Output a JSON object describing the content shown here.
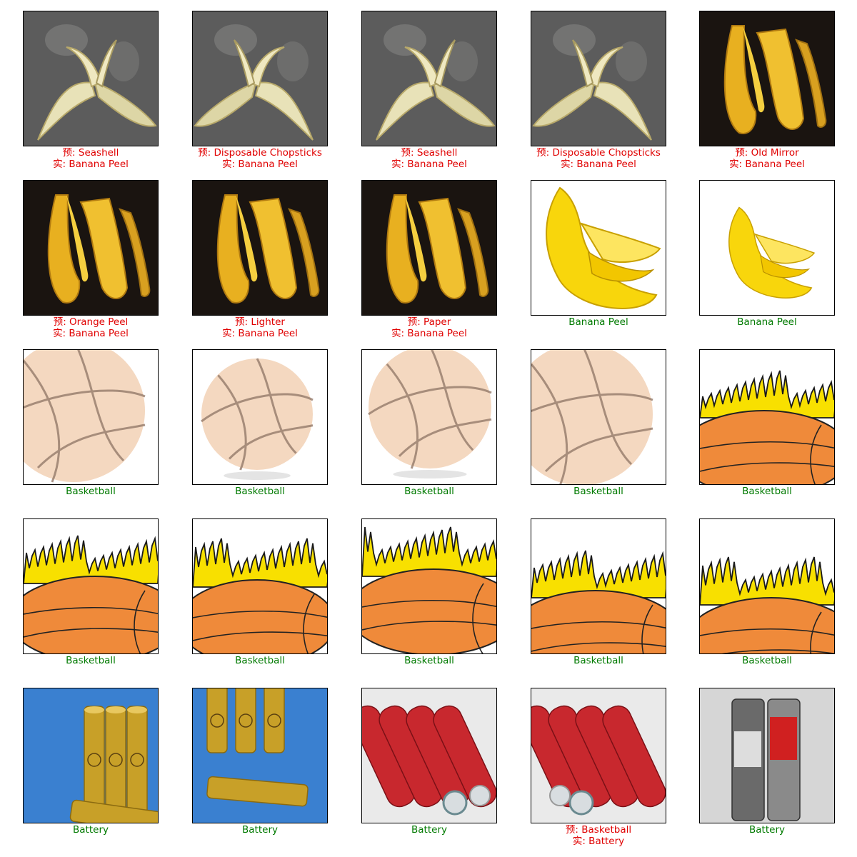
{
  "colors": {
    "correct": "#007a00",
    "incorrect": "#e00000"
  },
  "samples": [
    {
      "image": "banana-peel-asphalt-a",
      "pred": "预: Seashell",
      "actual": "实: Banana Peel",
      "correct": false
    },
    {
      "image": "banana-peel-asphalt-b",
      "pred": "预: Disposable Chopsticks",
      "actual": "实: Banana Peel",
      "correct": false
    },
    {
      "image": "banana-peel-asphalt-c",
      "pred": "预: Seashell",
      "actual": "实: Banana Peel",
      "correct": false
    },
    {
      "image": "banana-peel-asphalt-d",
      "pred": "预: Disposable Chopsticks",
      "actual": "实: Banana Peel",
      "correct": false
    },
    {
      "image": "banana-peel-dark-a",
      "pred": "预: Old Mirror",
      "actual": "实: Banana Peel",
      "correct": false
    },
    {
      "image": "banana-peel-dark-b",
      "pred": "预: Orange Peel",
      "actual": "实: Banana Peel",
      "correct": false
    },
    {
      "image": "banana-peel-dark-c",
      "pred": "预: Lighter",
      "actual": "实: Banana Peel",
      "correct": false
    },
    {
      "image": "banana-peel-dark-d",
      "pred": "预: Paper",
      "actual": "实: Banana Peel",
      "correct": false
    },
    {
      "image": "banana-peel-white-a",
      "label": "Banana Peel",
      "correct": true
    },
    {
      "image": "banana-peel-white-b",
      "label": "Banana Peel",
      "correct": true
    },
    {
      "image": "basketball-drawing-a",
      "label": "Basketball",
      "correct": true
    },
    {
      "image": "basketball-drawing-b",
      "label": "Basketball",
      "correct": true
    },
    {
      "image": "basketball-drawing-c",
      "label": "Basketball",
      "correct": true
    },
    {
      "image": "basketball-drawing-d",
      "label": "Basketball",
      "correct": true
    },
    {
      "image": "basketball-flames-a",
      "label": "Basketball",
      "correct": true
    },
    {
      "image": "basketball-flames-b",
      "label": "Basketball",
      "correct": true
    },
    {
      "image": "basketball-flames-c",
      "label": "Basketball",
      "correct": true
    },
    {
      "image": "basketball-flames-d",
      "label": "Basketball",
      "correct": true
    },
    {
      "image": "basketball-flames-e",
      "label": "Basketball",
      "correct": true
    },
    {
      "image": "basketball-flames-f",
      "label": "Basketball",
      "correct": true
    },
    {
      "image": "battery-gold-aa-a",
      "label": "Battery",
      "correct": true
    },
    {
      "image": "battery-gold-aa-b",
      "label": "Battery",
      "correct": true
    },
    {
      "image": "battery-red-cells-a",
      "label": "Battery",
      "correct": true
    },
    {
      "image": "battery-red-cells-b",
      "pred": "预: Basketball",
      "actual": "实: Battery",
      "correct": false
    },
    {
      "image": "battery-silver-aa",
      "label": "Battery",
      "correct": true
    }
  ]
}
